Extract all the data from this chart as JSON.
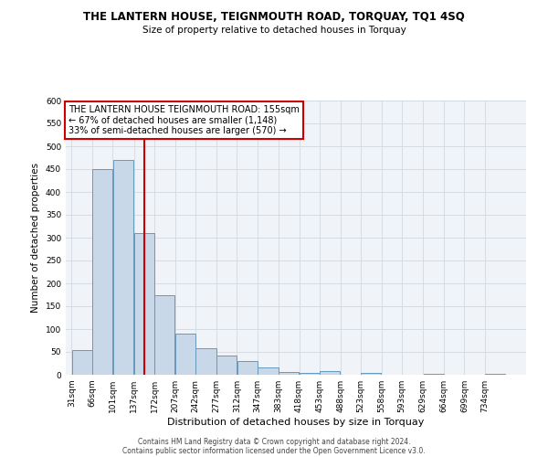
{
  "title": "THE LANTERN HOUSE, TEIGNMOUTH ROAD, TORQUAY, TQ1 4SQ",
  "subtitle": "Size of property relative to detached houses in Torquay",
  "xlabel": "Distribution of detached houses by size in Torquay",
  "ylabel": "Number of detached properties",
  "bin_labels": [
    "31sqm",
    "66sqm",
    "101sqm",
    "137sqm",
    "172sqm",
    "207sqm",
    "242sqm",
    "277sqm",
    "312sqm",
    "347sqm",
    "383sqm",
    "418sqm",
    "453sqm",
    "488sqm",
    "523sqm",
    "558sqm",
    "593sqm",
    "629sqm",
    "664sqm",
    "699sqm",
    "734sqm"
  ],
  "bin_edges": [
    31,
    66,
    101,
    137,
    172,
    207,
    242,
    277,
    312,
    347,
    383,
    418,
    453,
    488,
    523,
    558,
    593,
    629,
    664,
    699,
    734,
    769
  ],
  "counts": [
    55,
    450,
    470,
    310,
    175,
    90,
    58,
    42,
    30,
    16,
    7,
    5,
    8,
    1,
    5,
    1,
    0,
    3,
    0,
    0,
    2
  ],
  "bar_color": "#c8d8e8",
  "bar_edge_color": "#6699bb",
  "property_value": 155,
  "vline_color": "#cc0000",
  "annotation_line1": "THE LANTERN HOUSE TEIGNMOUTH ROAD: 155sqm",
  "annotation_line2": "← 67% of detached houses are smaller (1,148)",
  "annotation_line3": "33% of semi-detached houses are larger (570) →",
  "annotation_box_edgecolor": "#cc0000",
  "ylim": [
    0,
    600
  ],
  "yticks": [
    0,
    50,
    100,
    150,
    200,
    250,
    300,
    350,
    400,
    450,
    500,
    550,
    600
  ],
  "footer_line1": "Contains HM Land Registry data © Crown copyright and database right 2024.",
  "footer_line2": "Contains public sector information licensed under the Open Government Licence v3.0.",
  "background_color": "#ffffff",
  "plot_bg_color": "#f0f4f8",
  "grid_color": "#d0d8e0"
}
